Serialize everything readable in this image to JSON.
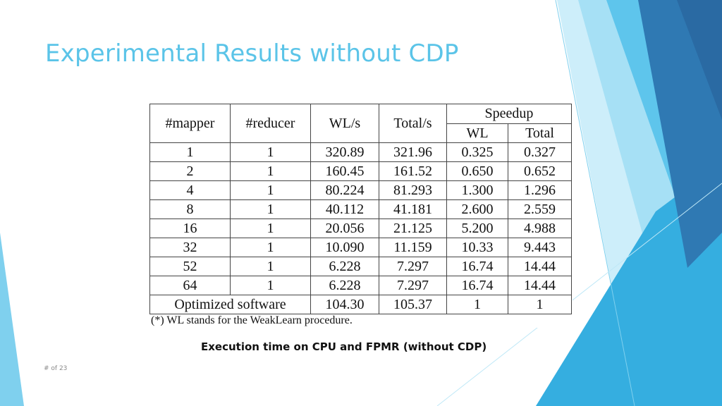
{
  "slide": {
    "title": "Experimental Results without CDP",
    "caption": "Execution time on CPU and FPMR (without CDP)",
    "page_label": "# of 23"
  },
  "table": {
    "headers": {
      "mapper": "#mapper",
      "reducer": "#reducer",
      "wl": "WL/s",
      "total": "Total/s",
      "speedup": "Speedup",
      "speedup_wl": "WL",
      "speedup_total": "Total"
    },
    "rows": [
      [
        "1",
        "1",
        "320.89",
        "321.96",
        "0.325",
        "0.327"
      ],
      [
        "2",
        "1",
        "160.45",
        "161.52",
        "0.650",
        "0.652"
      ],
      [
        "4",
        "1",
        "80.224",
        "81.293",
        "1.300",
        "1.296"
      ],
      [
        "8",
        "1",
        "40.112",
        "41.181",
        "2.600",
        "2.559"
      ],
      [
        "16",
        "1",
        "20.056",
        "21.125",
        "5.200",
        "4.988"
      ],
      [
        "32",
        "1",
        "10.090",
        "11.159",
        "10.33",
        "9.443"
      ],
      [
        "52",
        "1",
        "6.228",
        "7.297",
        "16.74",
        "14.44"
      ],
      [
        "64",
        "1",
        "6.228",
        "7.297",
        "16.74",
        "14.44"
      ]
    ],
    "optimized": [
      "Optimized software",
      "104.30",
      "105.37",
      "1",
      "1"
    ],
    "footnote": "(*) WL stands for the WeakLearn procedure."
  },
  "colors": {
    "title": "#5bc4e8",
    "accent_light": "#9ad9f2",
    "accent_mid": "#3fb5e3",
    "accent_dark": "#2e73ad"
  }
}
